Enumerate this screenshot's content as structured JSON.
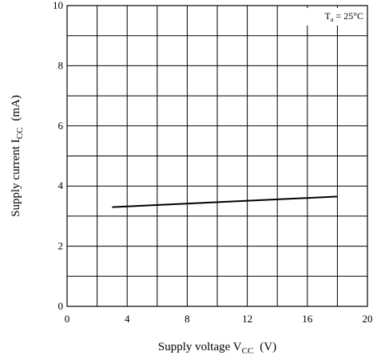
{
  "chart_data": {
    "type": "line",
    "title": "",
    "xlabel": "Supply voltage V_CC (V)",
    "ylabel": "Supply current I_CC (mA)",
    "xlabel_parts": {
      "prefix": "Supply voltage V",
      "sub": "CC",
      "suffix": "(V)"
    },
    "ylabel_parts": {
      "prefix": "Supply current I",
      "sub": "CC",
      "suffix": "(mA)"
    },
    "xlim": [
      0,
      20
    ],
    "ylim": [
      0,
      10
    ],
    "x_ticks": [
      0,
      4,
      8,
      12,
      16,
      20
    ],
    "y_ticks": [
      0,
      2,
      4,
      6,
      8,
      10
    ],
    "x_grid_step": 2,
    "y_grid_step": 1,
    "grid": true,
    "series": [
      {
        "x": [
          3,
          18
        ],
        "y": [
          3.3,
          3.65
        ]
      }
    ],
    "annotation": {
      "text_main": "T",
      "text_sub": "a",
      "text_rest": " = 25°C",
      "placement": "top-right"
    }
  }
}
